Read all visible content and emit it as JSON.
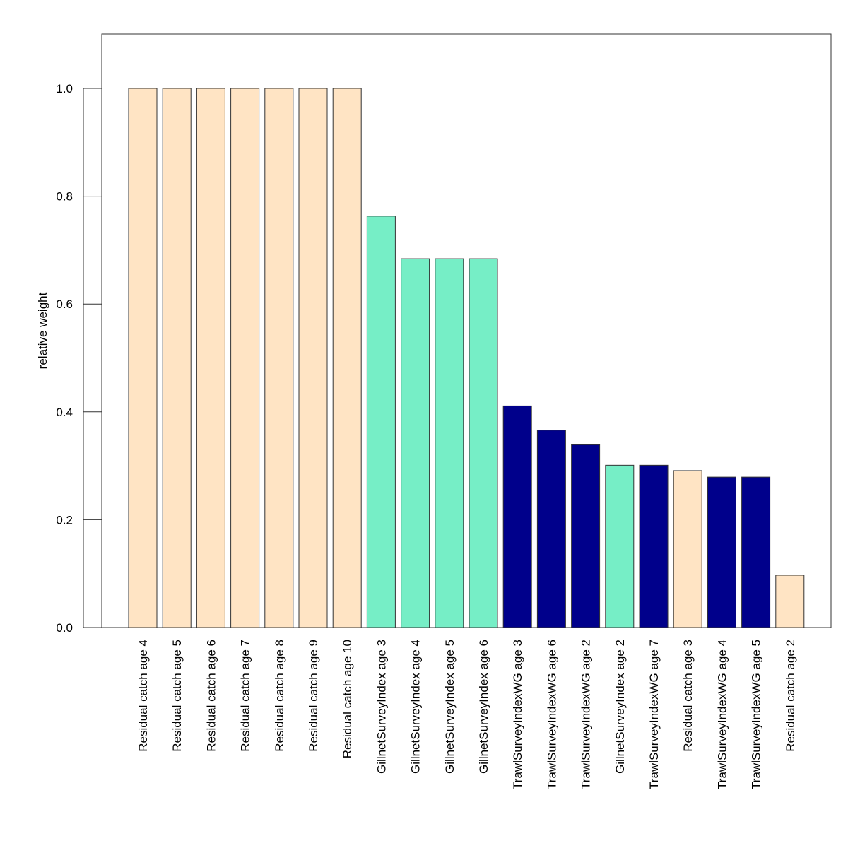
{
  "chart_data": {
    "type": "bar",
    "title": "",
    "xlabel": "",
    "ylabel": "relative weight",
    "ylim": [
      0,
      1.1
    ],
    "yticks": [
      0.0,
      0.2,
      0.4,
      0.6,
      0.8,
      1.0
    ],
    "ytick_labels": [
      "0.0",
      "0.2",
      "0.4",
      "0.6",
      "0.8",
      "1.0"
    ],
    "grid": false,
    "legend": "none",
    "colors": {
      "Residual catch": "#FFE4C4",
      "GillnetSurveyIndex": "#76EEC6",
      "TrawlSurveyIndexWG": "#00008B",
      "bar_border": "#333333",
      "axis": "#333333"
    },
    "categories": [
      "Residual catch age 4",
      "Residual catch age 5",
      "Residual catch age 6",
      "Residual catch age 7",
      "Residual catch age 8",
      "Residual catch age 9",
      "Residual catch age 10",
      "GillnetSurveyIndex age 3",
      "GillnetSurveyIndex age 4",
      "GillnetSurveyIndex age 5",
      "GillnetSurveyIndex age 6",
      "TrawlSurveyIndexWG age 3",
      "TrawlSurveyIndexWG age 6",
      "TrawlSurveyIndexWG age 2",
      "GillnetSurveyIndex age 2",
      "TrawlSurveyIndexWG age 7",
      "Residual catch age 3",
      "TrawlSurveyIndexWG age 4",
      "TrawlSurveyIndexWG age 5",
      "Residual catch age 2"
    ],
    "groups": [
      "Residual catch",
      "Residual catch",
      "Residual catch",
      "Residual catch",
      "Residual catch",
      "Residual catch",
      "Residual catch",
      "GillnetSurveyIndex",
      "GillnetSurveyIndex",
      "GillnetSurveyIndex",
      "GillnetSurveyIndex",
      "TrawlSurveyIndexWG",
      "TrawlSurveyIndexWG",
      "TrawlSurveyIndexWG",
      "GillnetSurveyIndex",
      "TrawlSurveyIndexWG",
      "Residual catch",
      "TrawlSurveyIndexWG",
      "TrawlSurveyIndexWG",
      "Residual catch"
    ],
    "values": [
      1.0,
      1.0,
      1.0,
      1.0,
      1.0,
      1.0,
      1.0,
      0.763,
      0.684,
      0.684,
      0.684,
      0.411,
      0.366,
      0.339,
      0.301,
      0.301,
      0.291,
      0.279,
      0.279,
      0.097
    ]
  }
}
